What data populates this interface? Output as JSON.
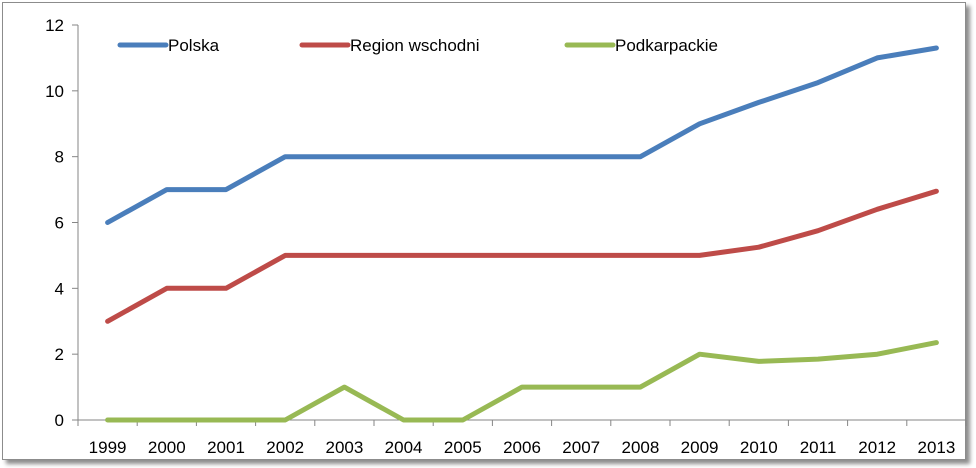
{
  "chart_data": {
    "type": "line",
    "x": [
      "1999",
      "2000",
      "2001",
      "2002",
      "2003",
      "2004",
      "2005",
      "2006",
      "2007",
      "2008",
      "2009",
      "2010",
      "2011",
      "2012",
      "2013"
    ],
    "ylim": [
      0,
      12
    ],
    "yticks": [
      0,
      2,
      4,
      6,
      8,
      10,
      12
    ],
    "grid": false,
    "legend_position": "top",
    "series": [
      {
        "name": "Polska",
        "color": "#4a7ebb",
        "values": [
          6,
          7,
          7,
          8,
          8,
          8,
          8,
          8,
          8,
          8,
          9,
          9.65,
          10.25,
          11,
          11.3
        ]
      },
      {
        "name": "Region wschodni",
        "color": "#be4b48",
        "values": [
          3,
          4,
          4,
          5,
          5,
          5,
          5,
          5,
          5,
          5,
          5,
          5.25,
          5.75,
          6.4,
          6.95
        ]
      },
      {
        "name": "Podkarpackie",
        "color": "#98b954",
        "values": [
          0,
          0,
          0,
          0,
          1,
          0,
          0,
          1,
          1,
          1,
          2,
          1.78,
          1.85,
          2,
          2.35
        ]
      }
    ]
  }
}
